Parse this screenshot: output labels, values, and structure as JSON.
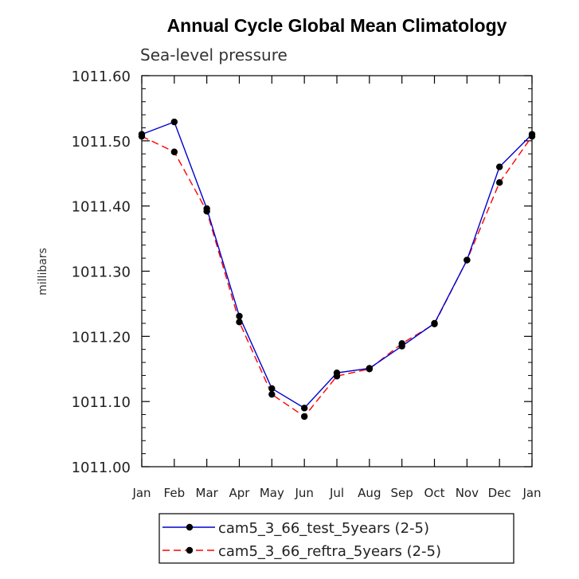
{
  "chart_data": {
    "type": "line",
    "title": "Annual Cycle Global Mean Climatology",
    "subtitle": "Sea-level pressure",
    "xlabel": "",
    "ylabel": "millibars",
    "categories": [
      "Jan",
      "Feb",
      "Mar",
      "Apr",
      "May",
      "Jun",
      "Jul",
      "Aug",
      "Sep",
      "Oct",
      "Nov",
      "Dec",
      "Jan"
    ],
    "ylim": [
      1011.0,
      1011.6
    ],
    "yticks": [
      "1011.00",
      "1011.10",
      "1011.20",
      "1011.30",
      "1011.40",
      "1011.50",
      "1011.60"
    ],
    "yticks_values": [
      1011.0,
      1011.1,
      1011.2,
      1011.3,
      1011.4,
      1011.5,
      1011.6
    ],
    "series": [
      {
        "name": "cam5_3_66_test_5years (2-5)",
        "color": "#0000cc",
        "dash": "solid",
        "values": [
          1011.51,
          1011.529,
          1011.396,
          1011.231,
          1011.12,
          1011.09,
          1011.144,
          1011.151,
          1011.185,
          1011.22,
          1011.317,
          1011.46,
          1011.51
        ]
      },
      {
        "name": "cam5_3_66_reftra_5years (2-5)",
        "color": "#ff0000",
        "dash": "dashed",
        "values": [
          1011.507,
          1011.483,
          1011.392,
          1011.222,
          1011.111,
          1011.077,
          1011.139,
          1011.15,
          1011.189,
          1011.219,
          1011.317,
          1011.436,
          1011.507
        ]
      }
    ],
    "legend": {
      "position": "bottom"
    }
  }
}
